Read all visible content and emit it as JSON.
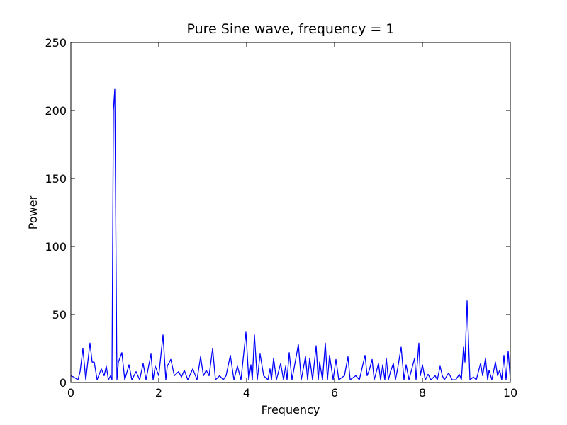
{
  "chart_data": {
    "type": "line",
    "title": "Pure Sine wave, frequency = 1",
    "x_label": "Frequency",
    "y_label": "Power",
    "xlim": [
      0,
      10
    ],
    "ylim": [
      0,
      250
    ],
    "xticks": [
      0,
      2,
      4,
      6,
      8,
      10
    ],
    "yticks": [
      0,
      50,
      100,
      150,
      200,
      250
    ],
    "series": [
      {
        "color": "#0000ff",
        "x": [
          0,
          0.065,
          0.161,
          0.21,
          0.274,
          0.339,
          0.435,
          0.484,
          0.532,
          0.597,
          0.694,
          0.758,
          0.806,
          0.855,
          0.903,
          0.935,
          0.968,
          1.0,
          1.048,
          1.081,
          1.161,
          1.226,
          1.323,
          1.387,
          1.484,
          1.565,
          1.645,
          1.71,
          1.823,
          1.871,
          1.919,
          2.0,
          2.097,
          2.161,
          2.194,
          2.274,
          2.355,
          2.452,
          2.516,
          2.581,
          2.661,
          2.774,
          2.871,
          2.952,
          3.016,
          3.081,
          3.145,
          3.226,
          3.29,
          3.387,
          3.468,
          3.532,
          3.629,
          3.71,
          3.79,
          3.871,
          3.984,
          4.048,
          4.097,
          4.129,
          4.177,
          4.242,
          4.306,
          4.387,
          4.484,
          4.532,
          4.565,
          4.613,
          4.677,
          4.774,
          4.839,
          4.887,
          4.919,
          4.968,
          5.032,
          5.177,
          5.242,
          5.339,
          5.387,
          5.435,
          5.5,
          5.581,
          5.629,
          5.661,
          5.726,
          5.79,
          5.839,
          5.887,
          5.968,
          6.032,
          6.097,
          6.226,
          6.306,
          6.355,
          6.484,
          6.565,
          6.694,
          6.742,
          6.79,
          6.855,
          6.903,
          7.0,
          7.048,
          7.097,
          7.145,
          7.177,
          7.226,
          7.274,
          7.339,
          7.387,
          7.435,
          7.516,
          7.581,
          7.629,
          7.694,
          7.823,
          7.855,
          7.919,
          7.952,
          8.0,
          8.065,
          8.129,
          8.194,
          8.29,
          8.339,
          8.403,
          8.452,
          8.5,
          8.597,
          8.677,
          8.758,
          8.839,
          8.887,
          8.935,
          8.968,
          9.016,
          9.081,
          9.161,
          9.226,
          9.323,
          9.371,
          9.435,
          9.484,
          9.516,
          9.581,
          9.661,
          9.71,
          9.758,
          9.806,
          9.855,
          9.903,
          9.952,
          10
        ],
        "values": [
          5,
          4,
          2,
          8,
          25,
          2,
          29,
          15,
          15,
          2,
          10,
          5,
          12,
          2,
          5,
          2,
          200,
          216,
          2,
          15,
          22,
          2,
          13,
          2,
          8,
          2,
          14,
          2,
          21,
          2,
          12,
          5,
          35,
          2,
          12,
          17,
          5,
          8,
          4,
          9,
          2,
          10,
          2,
          19,
          5,
          9,
          5,
          25,
          2,
          5,
          2,
          5,
          20,
          2,
          12,
          2,
          37,
          2,
          13,
          2,
          35,
          2,
          21,
          5,
          2,
          10,
          2,
          18,
          2,
          14,
          2,
          12,
          2,
          22,
          2,
          28,
          2,
          19,
          2,
          18,
          2,
          27,
          2,
          15,
          2,
          29,
          2,
          20,
          2,
          17,
          2,
          5,
          19,
          2,
          5,
          2,
          20,
          5,
          9,
          17,
          2,
          14,
          2,
          13,
          2,
          18,
          2,
          8,
          14,
          2,
          10,
          26,
          2,
          13,
          2,
          18,
          2,
          29,
          5,
          13,
          2,
          6,
          2,
          5,
          2,
          12,
          5,
          2,
          7,
          2,
          2,
          6,
          2,
          26,
          15,
          60,
          2,
          4,
          2,
          14,
          5,
          18,
          2,
          9,
          2,
          15,
          5,
          9,
          2,
          20,
          2,
          23,
          2
        ]
      }
    ]
  }
}
